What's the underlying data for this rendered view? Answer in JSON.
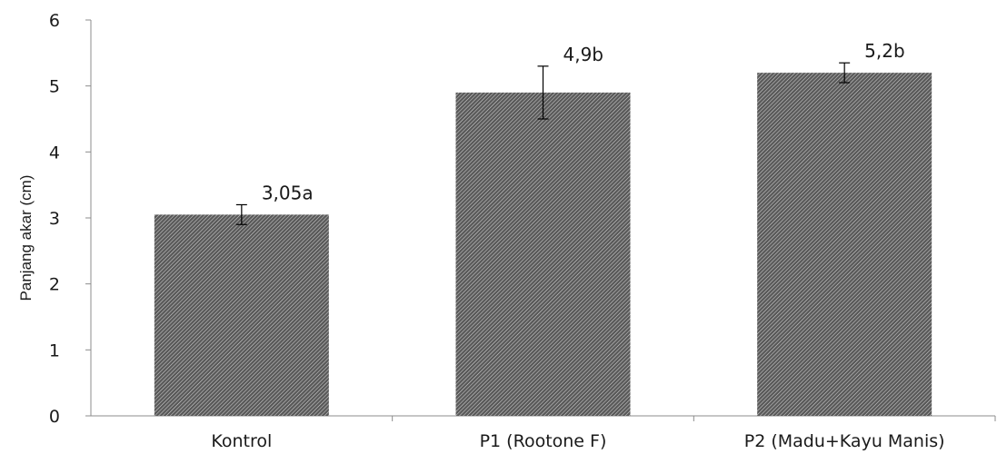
{
  "chart_data": {
    "type": "bar",
    "title": "",
    "xlabel": "",
    "ylabel": "Panjang akar (cm)",
    "categories": [
      "Kontrol",
      "P1 (Rootone F)",
      "P2 (Madu+Kayu Manis)"
    ],
    "values": [
      3.05,
      4.9,
      5.2
    ],
    "error": [
      0.15,
      0.4,
      0.15
    ],
    "data_labels": [
      "3,05a",
      "4,9b",
      "5,2b"
    ],
    "ylim": [
      0,
      6
    ],
    "yticks": [
      "0",
      "1",
      "2",
      "3",
      "4",
      "5",
      "6"
    ],
    "grid": false,
    "legend": "none",
    "bar_fill": "#5a5a5a",
    "bar_hatch": "#d9d9d9",
    "axis_color": "#8c8c8c"
  }
}
